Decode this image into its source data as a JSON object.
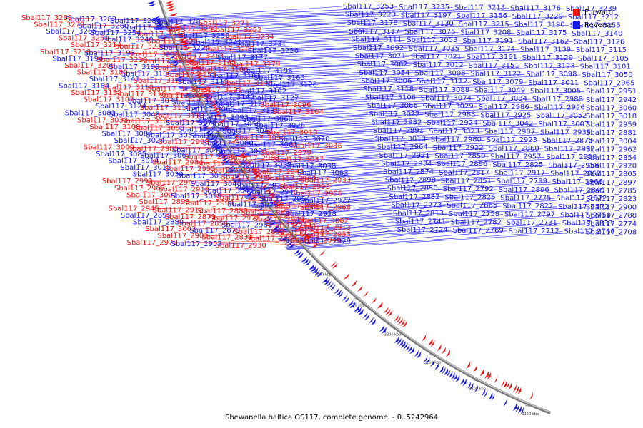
{
  "legend": {
    "forward_label": "Forward",
    "forward_color": "#ee1111",
    "reverse_label": "Reverse",
    "reverse_color": "#1515ee"
  },
  "caption": "Shewanella baltica OS117, complete genome. - 0..5242964",
  "ticks": [
    "3750 kbp",
    "3700 kbp",
    "3650 kbp",
    "3600 kbp",
    "3550 kbp",
    "3500 kbp",
    "3450 kbp",
    "3400 kbp",
    "3350 kbp",
    "3300 kbp",
    "3250 kbp",
    "3200 kbp",
    "3150 kbp"
  ],
  "labels": {
    "left": [
      {
        "t": "Sbal117_3288",
        "s": "f"
      },
      {
        "t": "Sbal117_3282",
        "s": "r"
      },
      {
        "t": "Sbal117_3284",
        "s": "r"
      },
      {
        "t": "Sbal117_3283",
        "s": "r"
      },
      {
        "t": "Sbal117_3271",
        "s": "f"
      },
      {
        "t": "Sbal117_3272",
        "s": "f"
      },
      {
        "t": "Sbal117_3260",
        "s": "r"
      },
      {
        "t": "Sbal117_3274",
        "s": "r"
      },
      {
        "t": "Sbal117_3259",
        "s": "f"
      },
      {
        "t": "Sbal117_3252",
        "s": "f"
      },
      {
        "t": "Sbal117_3265",
        "s": "r"
      },
      {
        "t": "Sbal117_3254",
        "s": "r"
      },
      {
        "t": "Sbal117_3243",
        "s": "f"
      },
      {
        "t": "Sbal117_3258",
        "s": "r"
      },
      {
        "t": "Sbal117_3234",
        "s": "f"
      },
      {
        "t": "Sbal117_3251",
        "s": "f"
      },
      {
        "t": "Sbal117_3240",
        "s": "r"
      },
      {
        "t": "Sbal117_3225",
        "s": "f"
      },
      {
        "t": "Sbal117_3241",
        "s": "r"
      },
      {
        "t": "Sbal117_3231",
        "s": "r"
      },
      {
        "t": "Sbal117_3214",
        "s": "f"
      },
      {
        "t": "Sbal117_3233",
        "s": "f"
      },
      {
        "t": "Sbal117_3224",
        "s": "r"
      },
      {
        "t": "Sbal117_3205",
        "s": "f"
      },
      {
        "t": "Sbal117_3226",
        "s": "r"
      },
      {
        "t": "Sbal117_3216",
        "s": "f"
      },
      {
        "t": "Sbal117_3193",
        "s": "r"
      },
      {
        "t": "Sbal117_3206",
        "s": "f"
      },
      {
        "t": "Sbal117_3217",
        "s": "f"
      },
      {
        "t": "Sbal117_3177",
        "s": "r"
      },
      {
        "t": "Sbal117_3194",
        "s": "r"
      },
      {
        "t": "Sbal117_3219",
        "s": "f"
      },
      {
        "t": "Sbal117_3207",
        "s": "f"
      },
      {
        "t": "Sbal117_3165",
        "s": "f"
      },
      {
        "t": "Sbal117_3179",
        "s": "f"
      },
      {
        "t": "Sbal117_3209",
        "s": "f"
      },
      {
        "t": "Sbal117_3195",
        "s": "r"
      },
      {
        "t": "Sbal117_3149",
        "s": "f"
      },
      {
        "t": "Sbal117_3166",
        "s": "f"
      },
      {
        "t": "Sbal117_3196",
        "s": "r"
      },
      {
        "t": "Sbal117_3180",
        "s": "f"
      },
      {
        "t": "Sbal117_3136",
        "s": "r"
      },
      {
        "t": "Sbal117_3153",
        "s": "f"
      },
      {
        "t": "Sbal117_3181",
        "s": "r"
      },
      {
        "t": "Sbal117_3163",
        "s": "r"
      },
      {
        "t": "Sbal117_3141",
        "s": "r"
      },
      {
        "t": "Sbal117_3125",
        "s": "f"
      },
      {
        "t": "Sbal117_3119",
        "s": "r"
      },
      {
        "t": "Sbal117_3148",
        "s": "f"
      },
      {
        "t": "Sbal117_3128",
        "s": "r"
      },
      {
        "t": "Sbal117_3164",
        "s": "r"
      },
      {
        "t": "Sbal117_3110",
        "s": "f"
      },
      {
        "t": "Sbal117_3137",
        "s": "f"
      },
      {
        "t": "Sbal117_3121",
        "s": "f"
      },
      {
        "t": "Sbal117_3102",
        "s": "r"
      },
      {
        "t": "Sbal117_3152",
        "s": "f"
      },
      {
        "t": "Sbal117_3116",
        "s": "f"
      },
      {
        "t": "Sbal117_3091",
        "s": "f"
      },
      {
        "t": "Sbal117_3142",
        "s": "r"
      },
      {
        "t": "Sbal117_3127",
        "s": "r"
      },
      {
        "t": "Sbal117_3107",
        "s": "f"
      },
      {
        "t": "Sbal117_3077",
        "s": "r"
      },
      {
        "t": "Sbal117_3132",
        "s": "r"
      },
      {
        "t": "Sbal117_3120",
        "s": "r"
      },
      {
        "t": "Sbal117_3096",
        "s": "f"
      },
      {
        "t": "Sbal117_3124",
        "s": "r"
      },
      {
        "t": "Sbal117_3114",
        "s": "f"
      },
      {
        "t": "Sbal117_3065",
        "s": "r"
      },
      {
        "t": "Sbal117_3131",
        "s": "r"
      },
      {
        "t": "Sbal117_3104",
        "s": "f"
      },
      {
        "t": "Sbal117_3081",
        "s": "r"
      },
      {
        "t": "Sbal117_3048",
        "s": "r"
      },
      {
        "t": "Sbal117_3113",
        "s": "f"
      },
      {
        "t": "Sbal117_3093",
        "s": "r"
      },
      {
        "t": "Sbal117_3068",
        "s": "r"
      },
      {
        "t": "Sbal117_3033",
        "s": "f"
      },
      {
        "t": "Sbal117_3103",
        "s": "f"
      },
      {
        "t": "Sbal117_3078",
        "s": "r"
      },
      {
        "t": "Sbal117_3056",
        "s": "r"
      },
      {
        "t": "Sbal117_3026",
        "s": "r"
      },
      {
        "t": "Sbal117_3108",
        "s": "f"
      },
      {
        "t": "Sbal117_3095",
        "s": "f"
      },
      {
        "t": "Sbal117_3069",
        "s": "r"
      },
      {
        "t": "Sbal117_3047",
        "s": "r"
      },
      {
        "t": "Sbal117_3010",
        "s": "f"
      },
      {
        "t": "Sbal117_3084",
        "s": "r"
      },
      {
        "t": "Sbal117_3032",
        "s": "r"
      },
      {
        "t": "Sbal117_3051",
        "s": "r"
      },
      {
        "t": "Sbal117_3094",
        "s": "f"
      },
      {
        "t": "Sbal117_3070",
        "s": "r"
      },
      {
        "t": "Sbal117_3024",
        "s": "r"
      },
      {
        "t": "Sbal117_2998",
        "s": "f"
      },
      {
        "t": "Sbal117_3080",
        "s": "r"
      },
      {
        "t": "Sbal117_3061",
        "s": "r"
      },
      {
        "t": "Sbal117_3036",
        "s": "f"
      },
      {
        "t": "Sbal117_3009",
        "s": "f"
      },
      {
        "t": "Sbal117_2985",
        "s": "f"
      },
      {
        "t": "Sbal117_3045",
        "s": "r"
      },
      {
        "t": "Sbal117_3025",
        "s": "r"
      },
      {
        "t": "Sbal117_2979",
        "s": "f"
      },
      {
        "t": "Sbal117_3085",
        "s": "r"
      },
      {
        "t": "Sbal117_3067",
        "s": "r"
      },
      {
        "t": "Sbal117_2996",
        "s": "f"
      },
      {
        "t": "Sbal117_2963",
        "s": "f"
      },
      {
        "t": "Sbal117_3037",
        "s": "f"
      },
      {
        "t": "Sbal117_3014",
        "s": "r"
      },
      {
        "t": "Sbal117_2984",
        "s": "f"
      },
      {
        "t": "Sbal117_2955",
        "s": "f"
      },
      {
        "t": "Sbal117_3057",
        "s": "r"
      },
      {
        "t": "Sbal117_3038",
        "s": "r"
      },
      {
        "t": "Sbal117_3015",
        "s": "r"
      },
      {
        "t": "Sbal117_2995",
        "s": "f"
      },
      {
        "t": "Sbal117_2970",
        "s": "f"
      },
      {
        "t": "Sbal117_2943",
        "s": "f"
      },
      {
        "t": "Sbal117_3063",
        "s": "r"
      },
      {
        "t": "Sbal117_3039",
        "s": "r"
      },
      {
        "t": "Sbal117_3016",
        "s": "r"
      },
      {
        "t": "Sbal117_2989",
        "s": "f"
      },
      {
        "t": "Sbal117_2960",
        "s": "f"
      },
      {
        "t": "Sbal117_2933",
        "s": "f"
      },
      {
        "t": "Sbal117_2991",
        "s": "f"
      },
      {
        "t": "Sbal117_2947",
        "s": "f"
      },
      {
        "t": "Sbal117_3040",
        "s": "r"
      },
      {
        "t": "Sbal117_3017",
        "s": "r"
      },
      {
        "t": "Sbal117_2993",
        "s": "f"
      },
      {
        "t": "Sbal117_2967",
        "s": "f"
      },
      {
        "t": "Sbal117_2916",
        "s": "f"
      },
      {
        "t": "Sbal117_3041",
        "s": "r"
      },
      {
        "t": "Sbal117_2940",
        "s": "r"
      },
      {
        "t": "Sbal117_2906",
        "s": "f"
      },
      {
        "t": "Sbal117_3001",
        "s": "f"
      },
      {
        "t": "Sbal117_3019",
        "s": "r"
      },
      {
        "t": "Sbal117_2978",
        "s": "f"
      },
      {
        "t": "Sbal117_2954",
        "s": "r"
      },
      {
        "t": "Sbal117_2927",
        "s": "r"
      },
      {
        "t": "Sbal117_2893",
        "s": "f"
      },
      {
        "t": "Sbal117_2994",
        "s": "f"
      },
      {
        "t": "Sbal117_3020",
        "s": "r"
      },
      {
        "t": "Sbal117_2999",
        "s": "f"
      },
      {
        "t": "Sbal117_2968",
        "s": "f"
      },
      {
        "t": "Sbal117_2945",
        "s": "f"
      },
      {
        "t": "Sbal117_2912",
        "s": "f"
      },
      {
        "t": "Sbal117_2883",
        "s": "f"
      },
      {
        "t": "Sbal117_3000",
        "s": "f"
      },
      {
        "t": "Sbal117_2928",
        "s": "r"
      },
      {
        "t": "Sbal117_2899",
        "s": "r"
      },
      {
        "t": "Sbal117_2871",
        "s": "f"
      },
      {
        "t": "Sbal117_2971",
        "s": "f"
      },
      {
        "t": "Sbal117_2949",
        "s": "f"
      },
      {
        "t": "Sbal117_3002",
        "s": "f"
      },
      {
        "t": "Sbal117_2889",
        "s": "r"
      },
      {
        "t": "Sbal117_2856",
        "s": "f"
      },
      {
        "t": "Sbal117_2961",
        "s": "r"
      },
      {
        "t": "Sbal117_2941",
        "s": "f"
      },
      {
        "t": "Sbal117_2913",
        "s": "f"
      },
      {
        "t": "Sbal117_3003",
        "s": "f"
      },
      {
        "t": "Sbal117_2879",
        "s": "r"
      },
      {
        "t": "Sbal117_2842",
        "s": "f"
      },
      {
        "t": "Sbal117_2981",
        "s": "f"
      },
      {
        "t": "Sbal117_2953",
        "s": "f"
      },
      {
        "t": "Sbal117_2901",
        "s": "f"
      },
      {
        "t": "Sbal117_2831",
        "s": "f"
      },
      {
        "t": "Sbal117_2969",
        "s": "f"
      },
      {
        "t": "Sbal117_2946",
        "s": "f"
      },
      {
        "t": "Sbal117_2929",
        "s": "r"
      },
      {
        "t": "Sbal117_2972",
        "s": "f"
      },
      {
        "t": "Sbal117_2952",
        "s": "r"
      },
      {
        "t": "Sbal117_2930",
        "s": "f"
      }
    ],
    "right": [
      {
        "t": "Sbal117_3253",
        "s": "r"
      },
      {
        "t": "Sbal117_3235",
        "s": "r"
      },
      {
        "t": "Sbal117_3213",
        "s": "r"
      },
      {
        "t": "Sbal117_3176",
        "s": "r"
      },
      {
        "t": "Sbal117_3239",
        "s": "r"
      },
      {
        "t": "Sbal117_3223",
        "s": "r"
      },
      {
        "t": "Sbal117_3197",
        "s": "r"
      },
      {
        "t": "Sbal117_3156",
        "s": "r"
      },
      {
        "t": "Sbal117_3229",
        "s": "r"
      },
      {
        "t": "Sbal117_3212",
        "s": "r"
      },
      {
        "t": "Sbal117_3178",
        "s": "r"
      },
      {
        "t": "Sbal117_3130",
        "s": "r"
      },
      {
        "t": "Sbal117_3215",
        "s": "r"
      },
      {
        "t": "Sbal117_3190",
        "s": "r"
      },
      {
        "t": "Sbal117_3155",
        "s": "r"
      },
      {
        "t": "Sbal117_3117",
        "s": "r"
      },
      {
        "t": "Sbal117_3075",
        "s": "r"
      },
      {
        "t": "Sbal117_3208",
        "s": "r"
      },
      {
        "t": "Sbal117_3175",
        "s": "r"
      },
      {
        "t": "Sbal117_3140",
        "s": "r"
      },
      {
        "t": "Sbal117_3111",
        "s": "r"
      },
      {
        "t": "Sbal117_3053",
        "s": "r"
      },
      {
        "t": "Sbal117_3191",
        "s": "r"
      },
      {
        "t": "Sbal117_3162",
        "s": "r"
      },
      {
        "t": "Sbal117_3126",
        "s": "r"
      },
      {
        "t": "Sbal117_3092",
        "s": "r"
      },
      {
        "t": "Sbal117_3035",
        "s": "r"
      },
      {
        "t": "Sbal117_3174",
        "s": "r"
      },
      {
        "t": "Sbal117_3139",
        "s": "r"
      },
      {
        "t": "Sbal117_3115",
        "s": "r"
      },
      {
        "t": "Sbal117_3071",
        "s": "r"
      },
      {
        "t": "Sbal117_3021",
        "s": "r"
      },
      {
        "t": "Sbal117_3161",
        "s": "r"
      },
      {
        "t": "Sbal117_3129",
        "s": "r"
      },
      {
        "t": "Sbal117_3105",
        "s": "r"
      },
      {
        "t": "Sbal117_3062",
        "s": "r"
      },
      {
        "t": "Sbal117_3012",
        "s": "r"
      },
      {
        "t": "Sbal117_3151",
        "s": "r"
      },
      {
        "t": "Sbal117_3123",
        "s": "r"
      },
      {
        "t": "Sbal117_3101",
        "s": "r"
      },
      {
        "t": "Sbal117_3054",
        "s": "r"
      },
      {
        "t": "Sbal117_3008",
        "s": "r"
      },
      {
        "t": "Sbal117_3122",
        "s": "r"
      },
      {
        "t": "Sbal117_3098",
        "s": "r"
      },
      {
        "t": "Sbal117_3050",
        "s": "r"
      },
      {
        "t": "Sbal117_3006",
        "s": "r"
      },
      {
        "t": "Sbal117_3112",
        "s": "r"
      },
      {
        "t": "Sbal117_3079",
        "s": "r"
      },
      {
        "t": "Sbal117_3011",
        "s": "r"
      },
      {
        "t": "Sbal117_2965",
        "s": "r"
      },
      {
        "t": "Sbal117_3118",
        "s": "r"
      },
      {
        "t": "Sbal117_3088",
        "s": "r"
      },
      {
        "t": "Sbal117_3049",
        "s": "r"
      },
      {
        "t": "Sbal117_3005",
        "s": "r"
      },
      {
        "t": "Sbal117_2951",
        "s": "r"
      },
      {
        "t": "Sbal117_3106",
        "s": "r"
      },
      {
        "t": "Sbal117_3074",
        "s": "r"
      },
      {
        "t": "Sbal117_3034",
        "s": "r"
      },
      {
        "t": "Sbal117_2988",
        "s": "r"
      },
      {
        "t": "Sbal117_2942",
        "s": "r"
      },
      {
        "t": "Sbal117_3066",
        "s": "r"
      },
      {
        "t": "Sbal117_3029",
        "s": "r"
      },
      {
        "t": "Sbal117_2986",
        "s": "r"
      },
      {
        "t": "Sbal117_2926",
        "s": "r"
      },
      {
        "t": "Sbal117_3060",
        "s": "r"
      },
      {
        "t": "Sbal117_3022",
        "s": "r"
      },
      {
        "t": "Sbal117_2983",
        "s": "r"
      },
      {
        "t": "Sbal117_2925",
        "s": "r"
      },
      {
        "t": "Sbal117_3052",
        "s": "r"
      },
      {
        "t": "Sbal117_3018",
        "s": "r"
      },
      {
        "t": "Sbal117_2982",
        "s": "r"
      },
      {
        "t": "Sbal117_2924",
        "s": "r"
      },
      {
        "t": "Sbal117_3042",
        "s": "r"
      },
      {
        "t": "Sbal117_3007",
        "s": "r"
      },
      {
        "t": "Sbal117_2959",
        "s": "r"
      },
      {
        "t": "Sbal117_2891",
        "s": "r"
      },
      {
        "t": "Sbal117_3023",
        "s": "r"
      },
      {
        "t": "Sbal117_2987",
        "s": "r"
      },
      {
        "t": "Sbal117_2935",
        "s": "r"
      },
      {
        "t": "Sbal117_2881",
        "s": "r"
      },
      {
        "t": "Sbal117_3013",
        "s": "r"
      },
      {
        "t": "Sbal117_2980",
        "s": "r"
      },
      {
        "t": "Sbal117_2923",
        "s": "r"
      },
      {
        "t": "Sbal117_2875",
        "s": "r"
      },
      {
        "t": "Sbal117_3004",
        "s": "r"
      },
      {
        "t": "Sbal117_2964",
        "s": "r"
      },
      {
        "t": "Sbal117_2922",
        "s": "r"
      },
      {
        "t": "Sbal117_2860",
        "s": "r"
      },
      {
        "t": "Sbal117_2997",
        "s": "r"
      },
      {
        "t": "Sbal117_2962",
        "s": "r"
      },
      {
        "t": "Sbal117_2921",
        "s": "r"
      },
      {
        "t": "Sbal117_2859",
        "s": "r"
      },
      {
        "t": "Sbal117_2957",
        "s": "r"
      },
      {
        "t": "Sbal117_2918",
        "s": "r"
      },
      {
        "t": "Sbal117_2854",
        "s": "r"
      },
      {
        "t": "Sbal117_2934",
        "s": "r"
      },
      {
        "t": "Sbal117_2886",
        "s": "r"
      },
      {
        "t": "Sbal117_2825",
        "s": "r"
      },
      {
        "t": "Sbal117_2958",
        "s": "r"
      },
      {
        "t": "Sbal117_2920",
        "s": "r"
      },
      {
        "t": "Sbal117_2874",
        "s": "r"
      },
      {
        "t": "Sbal117_2817",
        "s": "r"
      },
      {
        "t": "Sbal117_2917",
        "s": "r"
      },
      {
        "t": "Sbal117_2862",
        "s": "r"
      },
      {
        "t": "Sbal117_2805",
        "s": "r"
      },
      {
        "t": "Sbal117_2898",
        "s": "r"
      },
      {
        "t": "Sbal117_2851",
        "s": "r"
      },
      {
        "t": "Sbal117_2799",
        "s": "r"
      },
      {
        "t": "Sbal117_2966",
        "s": "r"
      },
      {
        "t": "Sbal117_2897",
        "s": "r"
      },
      {
        "t": "Sbal117_2850",
        "s": "r"
      },
      {
        "t": "Sbal117_2792",
        "s": "r"
      },
      {
        "t": "Sbal117_2896",
        "s": "r"
      },
      {
        "t": "Sbal117_2849",
        "s": "r"
      },
      {
        "t": "Sbal117_2785",
        "s": "r"
      },
      {
        "t": "Sbal117_2882",
        "s": "r"
      },
      {
        "t": "Sbal117_2826",
        "s": "r"
      },
      {
        "t": "Sbal117_2775",
        "s": "r"
      },
      {
        "t": "Sbal117_2872",
        "s": "r"
      },
      {
        "t": "Sbal117_2823",
        "s": "r"
      },
      {
        "t": "Sbal117_2773",
        "s": "r"
      },
      {
        "t": "Sbal117_2865",
        "s": "r"
      },
      {
        "t": "Sbal117_2822",
        "s": "r"
      },
      {
        "t": "Sbal117_2772",
        "s": "r"
      },
      {
        "t": "Sbal117_2900",
        "s": "r"
      },
      {
        "t": "Sbal117_2813",
        "s": "r"
      },
      {
        "t": "Sbal117_2758",
        "s": "r"
      },
      {
        "t": "Sbal117_2797",
        "s": "r"
      },
      {
        "t": "Sbal117_2750",
        "s": "r"
      },
      {
        "t": "Sbal117_2788",
        "s": "r"
      },
      {
        "t": "Sbal117_2741",
        "s": "r"
      },
      {
        "t": "Sbal117_2782",
        "s": "r"
      },
      {
        "t": "Sbal117_2731",
        "s": "r"
      },
      {
        "t": "Sbal117_2833",
        "s": "r"
      },
      {
        "t": "Sbal117_2774",
        "s": "r"
      },
      {
        "t": "Sbal117_2724",
        "s": "r"
      },
      {
        "t": "Sbal117_2769",
        "s": "r"
      },
      {
        "t": "Sbal117_2712",
        "s": "r"
      },
      {
        "t": "Sbal117_2766",
        "s": "r"
      },
      {
        "t": "Sbal117_2708",
        "s": "r"
      }
    ]
  }
}
